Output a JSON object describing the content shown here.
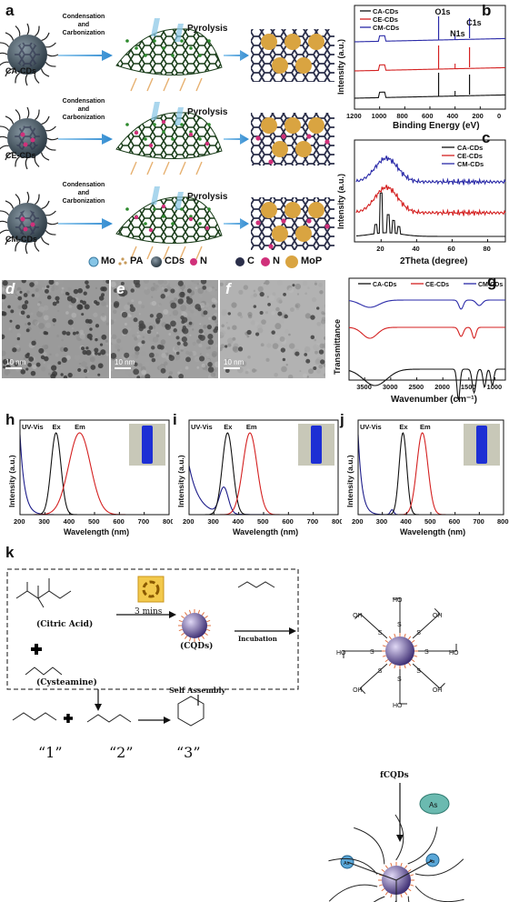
{
  "panels": {
    "a": {
      "label": "a",
      "rows": [
        {
          "name": "CA-CDs",
          "step1": "Condensation and Carbonization",
          "step2": "Pyrolysis"
        },
        {
          "name": "CE-CDs",
          "step1": "Condensation and Carbonization",
          "step2": "Pyrolysis"
        },
        {
          "name": "CM-CDs",
          "step1": "Condensation and Carbonization",
          "step2": "Pyrolysis"
        }
      ],
      "legend": [
        "Mo",
        "PA",
        "CDs",
        "N",
        "C",
        "N",
        "MoP"
      ]
    },
    "b": {
      "label": "b",
      "ylabel": "Intensity (a.u.)",
      "xlabel": "Binding Energy (eV)",
      "peaks": [
        "O1s",
        "N1s",
        "C1s"
      ],
      "legend": [
        "CA-CDs",
        "CE-CDs",
        "CM-CDs"
      ],
      "xticks": [
        "1200",
        "1000",
        "800",
        "600",
        "400",
        "200",
        "0"
      ]
    },
    "c": {
      "label": "c",
      "ylabel": "Intensity (a.u.)",
      "xlabel": "2Theta (degree)",
      "legend": [
        "CA-CDs",
        "CE-CDs",
        "CM-CDs"
      ],
      "xticks": [
        "20",
        "40",
        "60",
        "80"
      ]
    },
    "d": {
      "label": "d",
      "scale": "10 nm"
    },
    "e": {
      "label": "e",
      "scale": "10 nm"
    },
    "f": {
      "label": "f",
      "scale": "10 nm"
    },
    "g": {
      "label": "g",
      "ylabel": "Transmittance",
      "xlabel": "Wavenumber (cm⁻¹)",
      "legend": [
        "CA-CDs",
        "CE-CDs",
        "CM-CDs"
      ],
      "xticks": [
        "3500",
        "3000",
        "2500",
        "2000",
        "1500",
        "1000"
      ]
    },
    "h": {
      "label": "h"
    },
    "i": {
      "label": "i"
    },
    "j": {
      "label": "j"
    },
    "spectra_common": {
      "ylabel": "Intensity (a.u.)",
      "xlabel": "Wavelength (nm)",
      "series": [
        "UV-Vis",
        "Ex",
        "Em"
      ],
      "xticks": [
        "200",
        "300",
        "400",
        "500",
        "600",
        "700",
        "800"
      ]
    },
    "k": {
      "label": "k",
      "citric": "(Citric Acid)",
      "cysteamine": "(Cysteamine)",
      "time": "3 mins",
      "cqds": "(CQDs)",
      "incubation": "Incubation",
      "self_assembly": "Self Assembly",
      "fcqds": "fCQDs",
      "as": "As",
      "products": [
        "“1”",
        "“2”",
        "“3”"
      ]
    }
  },
  "colors": {
    "ca": "#111111",
    "ce": "#d42020",
    "cm": "#2a2aa8",
    "mop": "#d9a441",
    "mo": "#86c5e6"
  },
  "chart_data": [
    {
      "type": "line",
      "title": "",
      "xlabel": "Binding Energy (eV)",
      "ylabel": "Intensity (a.u.)",
      "xlim": [
        1200,
        0
      ],
      "series": [
        {
          "name": "CA-CDs"
        },
        {
          "name": "CE-CDs"
        },
        {
          "name": "CM-CDs"
        }
      ]
    },
    {
      "type": "line",
      "title": "",
      "xlabel": "2Theta (degree)",
      "ylabel": "Intensity (a.u.)",
      "xlim": [
        5,
        90
      ],
      "series": [
        {
          "name": "CA-CDs"
        },
        {
          "name": "CE-CDs"
        },
        {
          "name": "CM-CDs"
        }
      ]
    },
    {
      "type": "line",
      "title": "",
      "xlabel": "Wavenumber (cm⁻¹)",
      "ylabel": "Transmittance",
      "xlim": [
        3800,
        800
      ],
      "series": [
        {
          "name": "CA-CDs"
        },
        {
          "name": "CE-CDs"
        },
        {
          "name": "CM-CDs"
        }
      ]
    },
    {
      "type": "line",
      "xlabel": "Wavelength (nm)",
      "ylabel": "Intensity (a.u.)",
      "xlim": [
        200,
        800
      ],
      "series": [
        {
          "name": "UV-Vis"
        },
        {
          "name": "Ex"
        },
        {
          "name": "Em"
        }
      ]
    }
  ]
}
